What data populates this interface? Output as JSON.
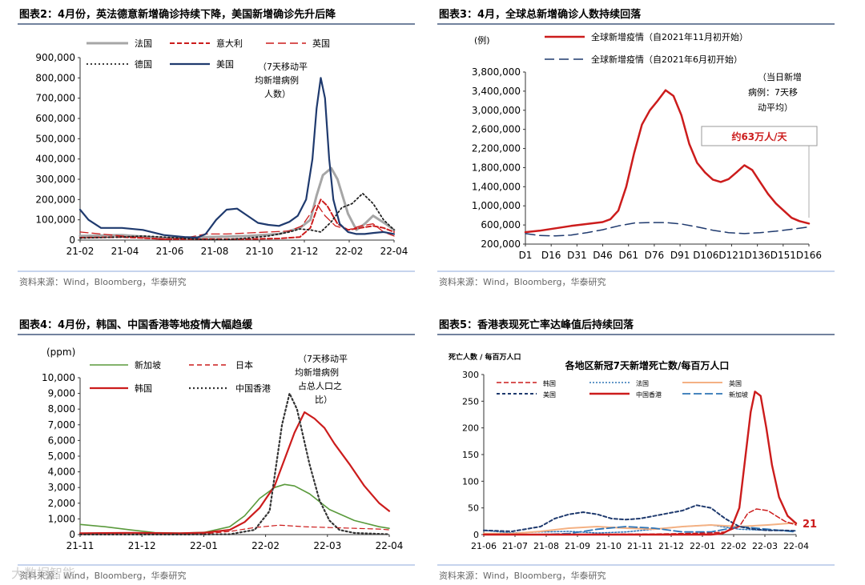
{
  "colors": {
    "title_rule": "#1f3864",
    "source_rule": "#8ea9db",
    "red": "#cc1c1c",
    "navy": "#1f3a6e",
    "grey": "#9a9a9a",
    "green": "#5a9a3c",
    "blue": "#2e75b6",
    "orange": "#f4b183"
  },
  "watermark": "大数据智能",
  "chart_data": [
    {
      "id": "chart2",
      "type": "line",
      "title": "图表2：4月份，英法德意新增确诊持续下降，美国新增确诊先升后降",
      "source": "资料来源：Wind，Bloomberg，华泰研究",
      "annotation": [
        "（7天移动平",
        "均新增病例",
        "人数）"
      ],
      "x_ticks": [
        "21-02",
        "21-04",
        "21-06",
        "21-08",
        "21-10",
        "21-12",
        "22-02",
        "22-04"
      ],
      "x_range": [
        0,
        15
      ],
      "y_ticks": [
        "0",
        "100,000",
        "200,000",
        "300,000",
        "400,000",
        "500,000",
        "600,000",
        "700,000",
        "800,000",
        "900,000"
      ],
      "ylim": [
        0,
        900000
      ],
      "legend": [
        "法国",
        "意大利",
        "英国",
        "德国",
        "美国"
      ],
      "series": [
        {
          "name": "法国",
          "color": "#a6a6a6",
          "dash": "",
          "width": 3,
          "x": [
            0,
            2,
            4,
            6,
            8,
            9.5,
            10.5,
            11,
            11.3,
            11.6,
            12,
            12.3,
            12.8,
            13.2,
            13.6,
            14,
            14.6,
            15
          ],
          "y": [
            20000,
            25000,
            10000,
            15000,
            20000,
            30000,
            60000,
            100000,
            220000,
            320000,
            355000,
            300000,
            130000,
            50000,
            80000,
            120000,
            80000,
            50000
          ]
        },
        {
          "name": "意大利",
          "color": "#cc1c1c",
          "dash": "6,3",
          "width": 2,
          "x": [
            0,
            2,
            4,
            6,
            8,
            9.5,
            10.5,
            11,
            11.3,
            11.5,
            11.8,
            12.3,
            12.8,
            13.4,
            14,
            14.5,
            15
          ],
          "y": [
            12000,
            15000,
            5000,
            5000,
            5000,
            8000,
            15000,
            60000,
            150000,
            200000,
            170000,
            80000,
            50000,
            60000,
            70000,
            60000,
            40000
          ]
        },
        {
          "name": "英国",
          "color": "#cc1c1c",
          "dash": "10,5",
          "width": 1.3,
          "x": [
            0,
            2,
            4,
            5,
            6,
            7,
            8,
            9,
            10,
            10.6,
            11,
            11.3,
            11.7,
            12.2,
            12.8,
            13.4,
            14,
            14.5,
            15
          ],
          "y": [
            40000,
            20000,
            3000,
            10000,
            30000,
            30000,
            35000,
            40000,
            45000,
            70000,
            130000,
            180000,
            120000,
            70000,
            50000,
            70000,
            80000,
            40000,
            20000
          ]
        },
        {
          "name": "德国",
          "color": "#222222",
          "dash": "2,3",
          "width": 1.8,
          "x": [
            0,
            2,
            3,
            4,
            6,
            7,
            8,
            9,
            10,
            10.5,
            11,
            11.5,
            12,
            12.5,
            13,
            13.5,
            14,
            14.5,
            15
          ],
          "y": [
            10000,
            15000,
            20000,
            15000,
            2000,
            3000,
            10000,
            20000,
            40000,
            55000,
            50000,
            40000,
            90000,
            160000,
            180000,
            230000,
            180000,
            100000,
            50000
          ]
        },
        {
          "name": "美国",
          "color": "#1f3a6e",
          "dash": "",
          "width": 2.2,
          "x": [
            0,
            0.4,
            1,
            2,
            3,
            4,
            5,
            5.6,
            6,
            6.5,
            7,
            7.5,
            8,
            8.5,
            9,
            9.5,
            10,
            10.4,
            10.8,
            11.1,
            11.3,
            11.5,
            11.7,
            11.9,
            12.1,
            12.4,
            12.8,
            13.2,
            13.6,
            14,
            14.5,
            15
          ],
          "y": [
            150000,
            100000,
            60000,
            60000,
            50000,
            25000,
            15000,
            12000,
            30000,
            100000,
            150000,
            155000,
            120000,
            85000,
            75000,
            70000,
            90000,
            120000,
            200000,
            400000,
            650000,
            800000,
            700000,
            400000,
            200000,
            80000,
            40000,
            30000,
            30000,
            35000,
            40000,
            30000
          ]
        }
      ]
    },
    {
      "id": "chart3",
      "type": "line",
      "title": "图表3：4月，全球总新增确诊人数持续回落",
      "source": "资料来源：Wind，Bloomberg，华泰研究",
      "unit": "(例)",
      "annotation": [
        "（当日新增",
        "病例：7天移",
        "动平均）"
      ],
      "callout": "约63万人/天",
      "x_ticks": [
        "D1",
        "D16",
        "D31",
        "D46",
        "D61",
        "D76",
        "D91",
        "D106",
        "D121",
        "D136",
        "D151",
        "D166"
      ],
      "x_range": [
        1,
        181
      ],
      "y_ticks": [
        "200,000",
        "600,000",
        "1,000,000",
        "1,400,000",
        "1,800,000",
        "2,200,000",
        "2,600,000",
        "3,000,000",
        "3,400,000",
        "3,800,000"
      ],
      "ylim": [
        200000,
        3800000
      ],
      "legend": [
        "全球新增疫情（自2021年11月初开始）",
        "全球新增疫情（自2021年6月初开始）"
      ],
      "series": [
        {
          "name": "全球新增疫情（自2021年11月初开始）",
          "color": "#cc1c1c",
          "dash": "",
          "width": 2.5,
          "x": [
            1,
            10,
            20,
            30,
            40,
            50,
            55,
            60,
            65,
            70,
            75,
            80,
            85,
            90,
            95,
            100,
            105,
            110,
            115,
            120,
            125,
            130,
            135,
            140,
            145,
            150,
            155,
            160,
            165,
            170,
            175,
            181
          ],
          "y": [
            450000,
            480000,
            530000,
            580000,
            620000,
            660000,
            720000,
            900000,
            1400000,
            2100000,
            2700000,
            3000000,
            3200000,
            3420000,
            3300000,
            2900000,
            2300000,
            1900000,
            1700000,
            1550000,
            1500000,
            1560000,
            1700000,
            1850000,
            1750000,
            1500000,
            1250000,
            1050000,
            900000,
            750000,
            680000,
            630000
          ]
        },
        {
          "name": "全球新增疫情（自2021年6月初开始）",
          "color": "#1f3a6e",
          "dash": "12,6",
          "width": 1.5,
          "x": [
            1,
            10,
            20,
            30,
            40,
            50,
            60,
            70,
            80,
            90,
            100,
            110,
            120,
            130,
            140,
            150,
            160,
            170,
            181
          ],
          "y": [
            420000,
            380000,
            370000,
            390000,
            440000,
            500000,
            580000,
            640000,
            650000,
            650000,
            620000,
            560000,
            490000,
            440000,
            420000,
            440000,
            470000,
            510000,
            560000
          ]
        }
      ]
    },
    {
      "id": "chart4",
      "type": "line",
      "title": "图表4：4月份，韩国、中国香港等地疫情大幅趋缓",
      "source": "资料来源：Wind，Bloomberg，华泰研究",
      "unit": "(ppm)",
      "annotation": [
        "（7天移动平",
        "均新增病例",
        "占总人口之",
        "比）"
      ],
      "x_ticks": [
        "21-11",
        "21-12",
        "22-01",
        "22-02",
        "22-03",
        "22-04"
      ],
      "x_range": [
        0,
        6.2
      ],
      "y_ticks": [
        "0",
        "1,000",
        "2,000",
        "3,000",
        "4,000",
        "5,000",
        "6,000",
        "7,000",
        "8,000",
        "9,000",
        "10,000"
      ],
      "ylim": [
        0,
        10000
      ],
      "legend": [
        "新加坡",
        "日本",
        "韩国",
        "中国香港"
      ],
      "series": [
        {
          "name": "新加坡",
          "color": "#5a9a3c",
          "dash": "",
          "width": 1.6,
          "x": [
            0,
            0.5,
            1,
            1.5,
            2,
            2.5,
            3,
            3.3,
            3.6,
            3.9,
            4.1,
            4.3,
            4.6,
            5,
            5.5,
            6,
            6.2
          ],
          "y": [
            650,
            500,
            300,
            120,
            90,
            150,
            500,
            1200,
            2300,
            3000,
            3200,
            3100,
            2600,
            1600,
            900,
            500,
            400
          ]
        },
        {
          "name": "日本",
          "color": "#cc1c1c",
          "dash": "6,4",
          "width": 1.2,
          "x": [
            0,
            1,
            2,
            2.5,
            3,
            3.5,
            4,
            4.5,
            5,
            6,
            6.2
          ],
          "y": [
            5,
            5,
            20,
            50,
            200,
            450,
            600,
            500,
            450,
            350,
            300
          ]
        },
        {
          "name": "韩国",
          "color": "#cc1c1c",
          "dash": "",
          "width": 2.2,
          "x": [
            0,
            1,
            2,
            2.5,
            3,
            3.3,
            3.6,
            3.9,
            4.1,
            4.3,
            4.5,
            4.7,
            4.9,
            5.1,
            5.4,
            5.7,
            6,
            6.2
          ],
          "y": [
            80,
            110,
            80,
            120,
            300,
            800,
            1700,
            3100,
            4800,
            6500,
            7800,
            7400,
            6800,
            5800,
            4500,
            3100,
            2000,
            1500
          ]
        },
        {
          "name": "中国香港",
          "color": "#333333",
          "dash": "2,3",
          "width": 2.2,
          "x": [
            0,
            2,
            3,
            3.5,
            3.8,
            4.05,
            4.2,
            4.35,
            4.6,
            4.8,
            5.0,
            5.2,
            5.5,
            6.2
          ],
          "y": [
            5,
            5,
            20,
            300,
            1500,
            7000,
            9000,
            8000,
            4500,
            2200,
            900,
            300,
            100,
            20
          ]
        }
      ]
    },
    {
      "id": "chart5",
      "type": "line",
      "title": "图表5：香港表现死亡率达峰值后持续回落",
      "source": "资料来源：Wind，Bloomberg，华泰研究",
      "inner_title": "各地区新冠7天新增死亡数/每百万人口",
      "unit": "死亡人数 / 每百万人口",
      "end_label": "21",
      "x_ticks": [
        "21-06",
        "21-07",
        "21-08",
        "21-09",
        "21-10",
        "21-11",
        "21-12",
        "22-01",
        "22-02",
        "22-03",
        "22-04"
      ],
      "x_range": [
        0,
        11
      ],
      "y_ticks": [
        "0",
        "50",
        "100",
        "150",
        "200",
        "250",
        "300"
      ],
      "ylim": [
        0,
        300
      ],
      "legend": [
        "韩国",
        "法国",
        "英国",
        "美国",
        "中国香港",
        "新加坡"
      ],
      "series": [
        {
          "name": "法国",
          "color": "#2e75b6",
          "dash": "2,2",
          "width": 1.5,
          "x": [
            0,
            1,
            2,
            3,
            4,
            5,
            6,
            7,
            8,
            9,
            10,
            11
          ],
          "y": [
            8,
            3,
            5,
            6,
            3,
            5,
            10,
            15,
            18,
            10,
            8,
            7
          ]
        },
        {
          "name": "英国",
          "color": "#f4b183",
          "dash": "",
          "width": 2,
          "x": [
            0,
            1,
            2,
            3,
            4,
            5,
            6,
            7,
            8,
            9,
            10,
            11
          ],
          "y": [
            2,
            2,
            6,
            12,
            15,
            12,
            10,
            15,
            18,
            15,
            18,
            22
          ]
        },
        {
          "name": "新加坡",
          "color": "#2e75b6",
          "dash": "10,4",
          "width": 1.8,
          "x": [
            0,
            2,
            3,
            4,
            5,
            6,
            7,
            8,
            9,
            10,
            11
          ],
          "y": [
            0,
            0,
            2,
            10,
            15,
            12,
            5,
            5,
            15,
            10,
            5
          ]
        },
        {
          "name": "美国",
          "color": "#1f3a6e",
          "dash": "4,3",
          "width": 2,
          "x": [
            0,
            1,
            2,
            2.5,
            3,
            3.5,
            4,
            4.5,
            5,
            5.5,
            6,
            6.5,
            7,
            7.5,
            8,
            8.5,
            9,
            9.5,
            10,
            10.5,
            11
          ],
          "y": [
            8,
            6,
            15,
            30,
            38,
            42,
            38,
            30,
            28,
            30,
            35,
            40,
            45,
            55,
            50,
            30,
            15,
            10,
            8,
            8,
            7
          ]
        },
        {
          "name": "韩国",
          "color": "#cc1c1c",
          "dash": "6,3",
          "width": 1.5,
          "x": [
            0,
            6,
            7,
            8,
            8.5,
            9,
            9.3,
            9.6,
            10,
            10.3,
            10.6,
            11
          ],
          "y": [
            0,
            1,
            2,
            3,
            5,
            15,
            40,
            48,
            45,
            35,
            25,
            18
          ]
        },
        {
          "name": "中国香港",
          "color": "#cc1c1c",
          "dash": "",
          "width": 2.4,
          "x": [
            0,
            8,
            8.4,
            8.7,
            9.0,
            9.2,
            9.4,
            9.55,
            9.75,
            9.95,
            10.15,
            10.4,
            10.7,
            11
          ],
          "y": [
            0,
            0,
            2,
            10,
            50,
            140,
            230,
            268,
            260,
            200,
            130,
            70,
            35,
            21
          ]
        }
      ]
    }
  ]
}
